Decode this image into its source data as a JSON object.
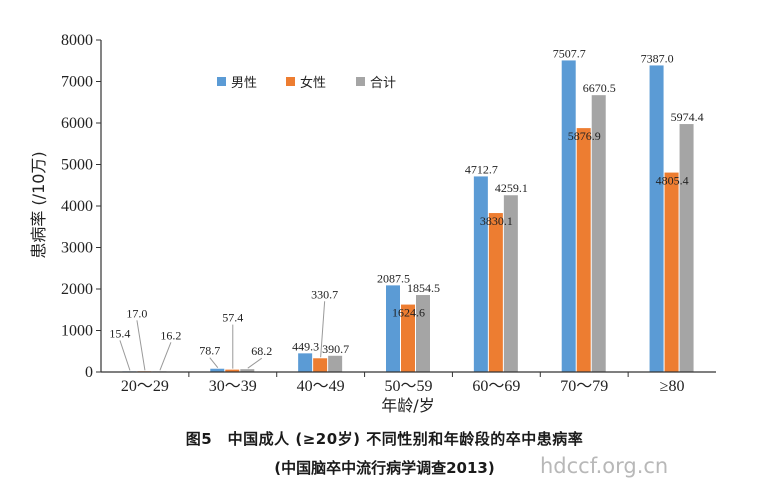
{
  "chart_data": {
    "type": "bar",
    "categories": [
      "20～29",
      "30～39",
      "40～49",
      "50～59",
      "60～69",
      "70～79",
      "≥80"
    ],
    "series": [
      {
        "name": "男性",
        "color": "#5B9BD5",
        "values": [
          15.4,
          78.7,
          449.3,
          2087.5,
          4712.7,
          7507.7,
          7387.0
        ]
      },
      {
        "name": "女性",
        "color": "#ED7D31",
        "values": [
          17.0,
          57.4,
          330.7,
          1624.6,
          3830.1,
          5876.9,
          4805.4
        ]
      },
      {
        "name": "合计",
        "color": "#A5A5A5",
        "values": [
          16.2,
          68.2,
          390.7,
          1854.5,
          4259.1,
          6670.5,
          5974.4
        ]
      }
    ],
    "data_labels": [
      [
        "15.4",
        "78.7",
        "449.3",
        "2087.5",
        "4712.7",
        "7507.7",
        "7387.0"
      ],
      [
        "17.0",
        "57.4",
        "330.7",
        "1624.6",
        "3830.1",
        "5876.9",
        "4805.4"
      ],
      [
        "16.2",
        "68.2",
        "390.7",
        "1854.5",
        "4259.1",
        "6670.5",
        "5974.4"
      ]
    ],
    "yticks": [
      "0",
      "1000",
      "2000",
      "3000",
      "4000",
      "5000",
      "6000",
      "7000",
      "8000"
    ],
    "ylim": [
      0,
      8000
    ],
    "ylabel": "患病率 (/10万)",
    "xlabel": "年龄/岁",
    "legend_position": "top-left",
    "grid": false,
    "title": "图5　中国成人 (≥20岁) 不同性别和年龄段的卒中患病率",
    "subtitle": "(中国脑卒中流行病学调查2013)"
  },
  "watermark": "hdccf.org.cn"
}
